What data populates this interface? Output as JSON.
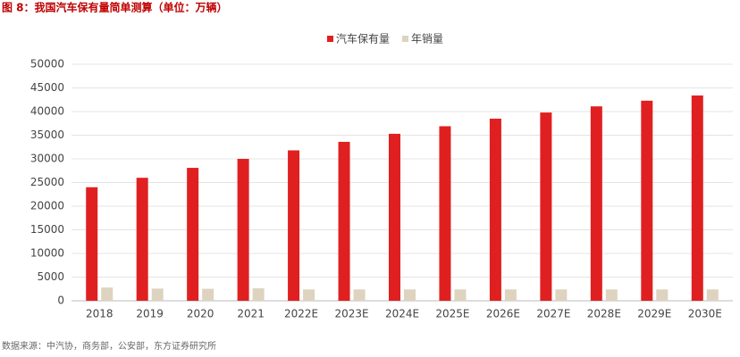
{
  "chart_data": {
    "type": "bar",
    "title": "图 8：我国汽车保有量简单测算（单位：万辆）",
    "source": "数据来源：中汽协，商务部，公安部，东方证券研究所",
    "categories": [
      "2018",
      "2019",
      "2020",
      "2021",
      "2022E",
      "2023E",
      "2024E",
      "2025E",
      "2026E",
      "2027E",
      "2028E",
      "2029E",
      "2030E"
    ],
    "series": [
      {
        "name": "汽车保有量",
        "color": "#e02020",
        "values": [
          24000,
          26000,
          28100,
          30000,
          31800,
          33600,
          35300,
          36900,
          38500,
          39800,
          41100,
          42300,
          43400
        ]
      },
      {
        "name": "年销量",
        "color": "#ddd3bf",
        "values": [
          2800,
          2580,
          2530,
          2630,
          2400,
          2400,
          2400,
          2400,
          2400,
          2400,
          2400,
          2400,
          2400
        ]
      }
    ],
    "ylim": [
      0,
      50000
    ],
    "yticks": [
      0,
      5000,
      10000,
      15000,
      20000,
      25000,
      30000,
      35000,
      40000,
      45000,
      50000
    ],
    "grid": true
  }
}
